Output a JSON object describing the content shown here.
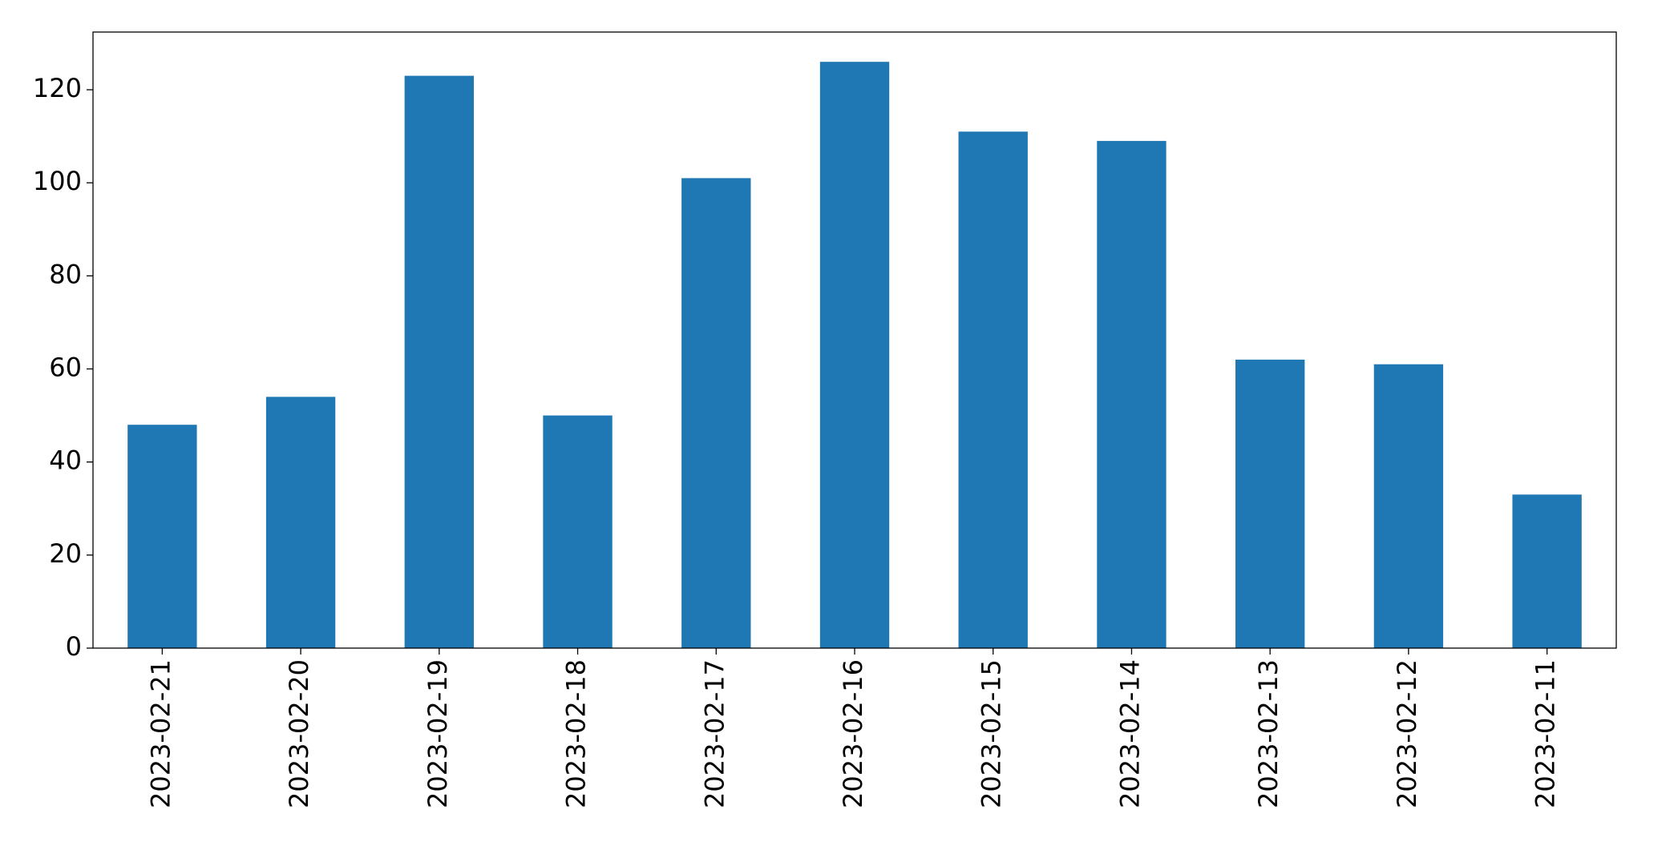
{
  "chart_data": {
    "type": "bar",
    "categories": [
      "2023-02-21",
      "2023-02-20",
      "2023-02-19",
      "2023-02-18",
      "2023-02-17",
      "2023-02-16",
      "2023-02-15",
      "2023-02-14",
      "2023-02-13",
      "2023-02-12",
      "2023-02-11"
    ],
    "values": [
      48,
      54,
      123,
      50,
      101,
      126,
      111,
      109,
      62,
      61,
      33
    ],
    "color": "#1f77b4",
    "ylim": [
      0,
      132.4
    ],
    "yticks": [
      0,
      20,
      40,
      60,
      80,
      100,
      120
    ],
    "grid": false
  }
}
